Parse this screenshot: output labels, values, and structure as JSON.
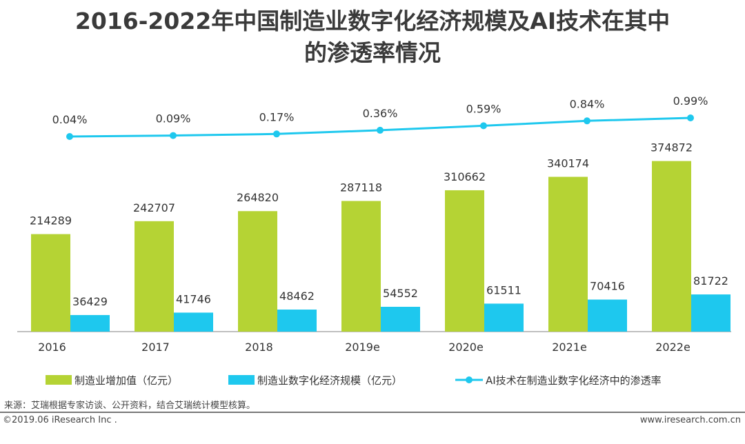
{
  "chart_data": {
    "type": "bar",
    "title_line1": "2016-2022年中国制造业数字化经济规模及AI技术在其中",
    "title_line2": "的渗透率情况",
    "categories": [
      "2016",
      "2017",
      "2018",
      "2019e",
      "2020e",
      "2021e",
      "2022e"
    ],
    "series": [
      {
        "name": "制造业增加值（亿元）",
        "type": "bar",
        "color": "#b5d334",
        "values": [
          214289,
          242707,
          264820,
          287118,
          310662,
          340174,
          374872
        ]
      },
      {
        "name": "制造业数字化经济规模（亿元）",
        "type": "bar",
        "color": "#1ec8ee",
        "values": [
          36429,
          41746,
          48462,
          54552,
          61511,
          70416,
          81722
        ]
      },
      {
        "name": "AI技术在制造业数字化经济中的渗透率",
        "type": "line",
        "color": "#1ec8ee",
        "values": [
          0.04,
          0.09,
          0.17,
          0.36,
          0.59,
          0.84,
          0.99
        ],
        "labels": [
          "0.04%",
          "0.09%",
          "0.17%",
          "0.36%",
          "0.59%",
          "0.84%",
          "0.99%"
        ]
      }
    ],
    "legend_placement": "bottom",
    "grid": false
  },
  "footer": {
    "source": "来源：艾瑞根据专家访谈、公开资料，结合艾瑞统计模型核算。",
    "copyright": "©2019.06 iResearch Inc .",
    "website": "www.iresearch.com.cn"
  }
}
